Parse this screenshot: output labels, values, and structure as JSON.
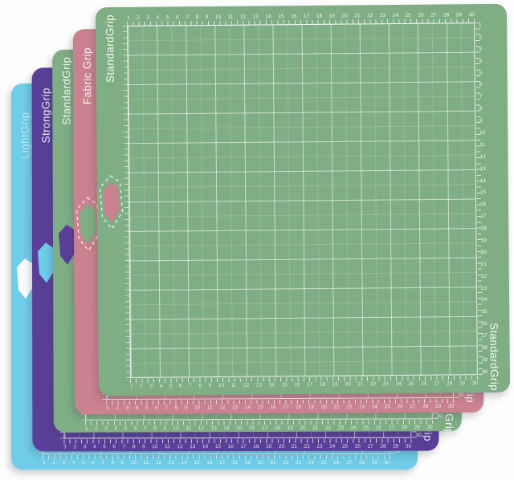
{
  "mats": [
    {
      "label": "LightGrip",
      "color": "#6fcde9",
      "arrow_reveal": "#fdfdfd",
      "label_color": "rgba(255,255,255,0.55)",
      "dashed_arrow_outline": false
    },
    {
      "label": "StrongGrip",
      "color": "#5a3f99",
      "arrow_reveal": "#6fcde9",
      "label_color": "rgba(255,255,255,0.92)",
      "dashed_arrow_outline": false
    },
    {
      "label": "StandardGrip",
      "color": "#7fae84",
      "arrow_reveal": "#5a3f99",
      "label_color": "rgba(255,255,255,0.92)",
      "dashed_arrow_outline": false
    },
    {
      "label": "Fabric Grip",
      "color": "#cb8290",
      "arrow_reveal": "#7fae84",
      "label_color": "rgba(255,255,255,0.92)",
      "dashed_arrow_outline": true
    },
    {
      "label": "StandardGrip",
      "color": "#7fae84",
      "arrow_reveal": "#cb8290",
      "label_color": "rgba(255,255,255,0.92)",
      "dashed_arrow_outline": true
    }
  ],
  "ruler": {
    "first_number": 1,
    "last_number": 30
  },
  "grid": {
    "columns": 12,
    "rows": 12
  },
  "colors": {
    "background": "#fdfdfd",
    "grid_line": "#ffffff",
    "ruler_text": "rgba(255,255,255,0.9)"
  }
}
